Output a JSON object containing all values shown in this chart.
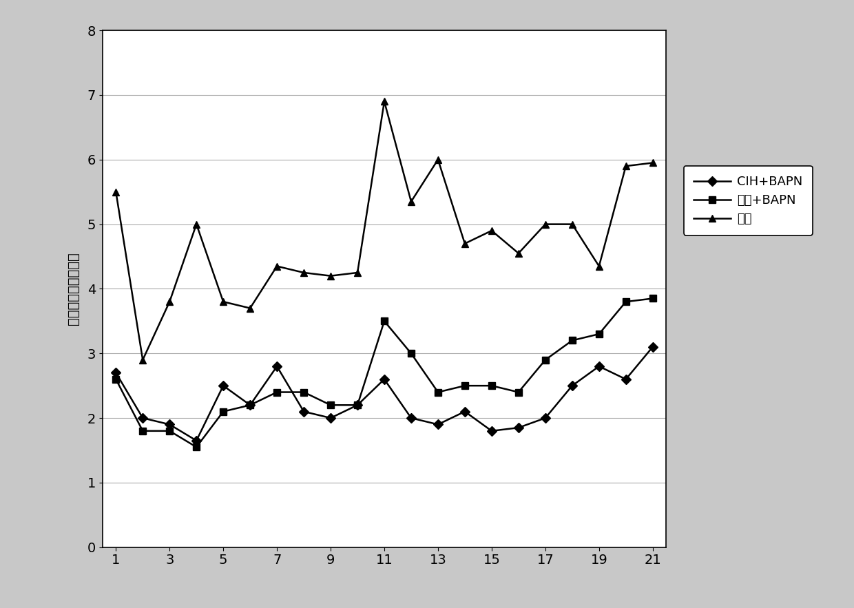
{
  "x": [
    1,
    2,
    3,
    4,
    5,
    6,
    7,
    8,
    9,
    10,
    11,
    12,
    13,
    14,
    15,
    16,
    17,
    18,
    19,
    20,
    21
  ],
  "cih_bapn": [
    2.7,
    2.0,
    1.9,
    1.65,
    2.5,
    2.2,
    2.8,
    2.1,
    2.0,
    2.2,
    2.6,
    2.0,
    1.9,
    2.1,
    1.8,
    1.85,
    2.0,
    2.5,
    2.8,
    2.6,
    3.1
  ],
  "chang_yang_bapn": [
    2.6,
    1.8,
    1.8,
    1.55,
    2.1,
    2.2,
    2.4,
    2.4,
    2.2,
    2.2,
    3.5,
    3.0,
    2.4,
    2.5,
    2.5,
    2.4,
    2.9,
    3.2,
    3.3,
    3.8,
    3.85
  ],
  "blank": [
    5.5,
    2.9,
    3.8,
    5.0,
    3.8,
    3.7,
    4.35,
    4.25,
    4.2,
    4.25,
    6.9,
    5.35,
    6.0,
    4.7,
    4.9,
    4.55,
    5.0,
    5.0,
    4.35,
    5.9,
    5.95
  ],
  "xlabel": "",
  "ylabel": "平均每只小鼠饮水量",
  "legend_labels": [
    "CIH+BAPN",
    "常氧+BAPN",
    "空白"
  ],
  "ylim": [
    0,
    8
  ],
  "yticks": [
    0,
    1,
    2,
    3,
    4,
    5,
    6,
    7,
    8
  ],
  "xticks": [
    1,
    3,
    5,
    7,
    9,
    11,
    13,
    15,
    17,
    19,
    21
  ],
  "line_color": "#000000",
  "plot_bg": "#ffffff",
  "outer_bg": "#c8c8c8",
  "border_color": "#000000",
  "marker_cih": "D",
  "marker_chang": "s",
  "marker_blank": "^",
  "fontsize": 14,
  "legend_fontsize": 13,
  "markersize": 7,
  "linewidth": 1.8
}
